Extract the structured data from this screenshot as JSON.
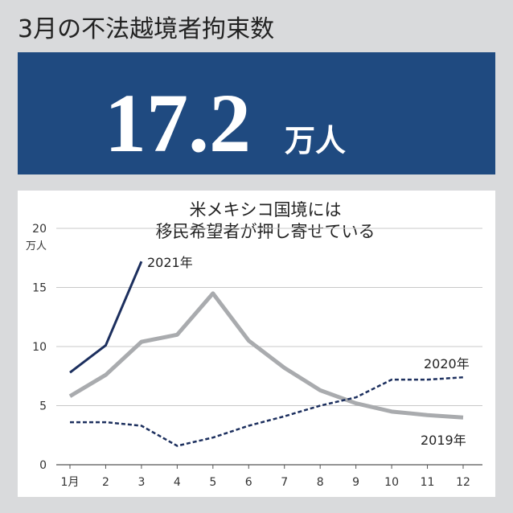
{
  "header": {
    "title": "3月の不法越境者拘束数"
  },
  "banner": {
    "value": 17.2,
    "unit": "万人"
  },
  "chart_data": {
    "type": "line",
    "title": [
      "米メキシコ国境には",
      "移民希望者が押し寄せている"
    ],
    "y_unit": "万人",
    "categories": [
      "1月",
      "2",
      "3",
      "4",
      "5",
      "6",
      "7",
      "8",
      "9",
      "10",
      "11",
      "12"
    ],
    "series": [
      {
        "name": "2021年",
        "color": "#1c2f5e",
        "line_style": "solid",
        "values": [
          7.8,
          10.1,
          17.2,
          null,
          null,
          null,
          null,
          null,
          null,
          null,
          null,
          null
        ]
      },
      {
        "name": "2020年",
        "color": "#1c2f5e",
        "line_style": "dashed",
        "values": [
          3.6,
          3.6,
          3.3,
          1.6,
          2.3,
          3.3,
          4.1,
          5.0,
          5.7,
          7.2,
          7.2,
          7.4
        ]
      },
      {
        "name": "2019年",
        "color": "#a9abae",
        "line_style": "thick",
        "values": [
          5.8,
          7.6,
          10.4,
          11.0,
          14.5,
          10.5,
          8.2,
          6.3,
          5.2,
          4.5,
          4.2,
          4.0
        ]
      }
    ],
    "ylim": [
      0,
      20
    ],
    "yticks": [
      0,
      5,
      10,
      15,
      20
    ],
    "grid": true
  }
}
